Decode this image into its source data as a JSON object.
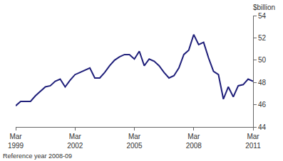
{
  "chart_data": {
    "type": "line",
    "ylabel": "$billion",
    "footnote": "Reference year 2008-09",
    "categories": [
      "Mar 1999",
      null,
      null,
      null,
      null,
      null,
      null,
      null,
      null,
      null,
      null,
      null,
      "Mar 2002",
      null,
      null,
      null,
      null,
      null,
      null,
      null,
      null,
      null,
      null,
      null,
      "Mar 2005",
      null,
      null,
      null,
      null,
      null,
      null,
      null,
      null,
      null,
      null,
      null,
      "Mar 2008",
      null,
      null,
      null,
      null,
      null,
      null,
      null,
      null,
      null,
      null,
      null,
      "Mar 2011"
    ],
    "values": [
      45.9,
      46.3,
      46.3,
      46.3,
      46.8,
      47.2,
      47.6,
      47.7,
      48.1,
      48.3,
      47.6,
      48.2,
      48.7,
      48.9,
      49.1,
      49.3,
      48.4,
      48.4,
      48.9,
      49.5,
      50.0,
      50.3,
      50.5,
      50.5,
      50.1,
      50.8,
      49.5,
      50.1,
      49.9,
      49.5,
      48.9,
      48.4,
      48.6,
      49.3,
      50.5,
      50.9,
      52.3,
      51.4,
      51.6,
      50.2,
      49.0,
      48.7,
      46.5,
      47.6,
      46.7,
      47.7,
      47.8,
      48.3,
      48.1
    ],
    "color": "#1f1f7a",
    "ylim": [
      44,
      54
    ],
    "yticks": [
      44,
      46,
      48,
      50,
      52,
      54
    ],
    "grid": false
  }
}
